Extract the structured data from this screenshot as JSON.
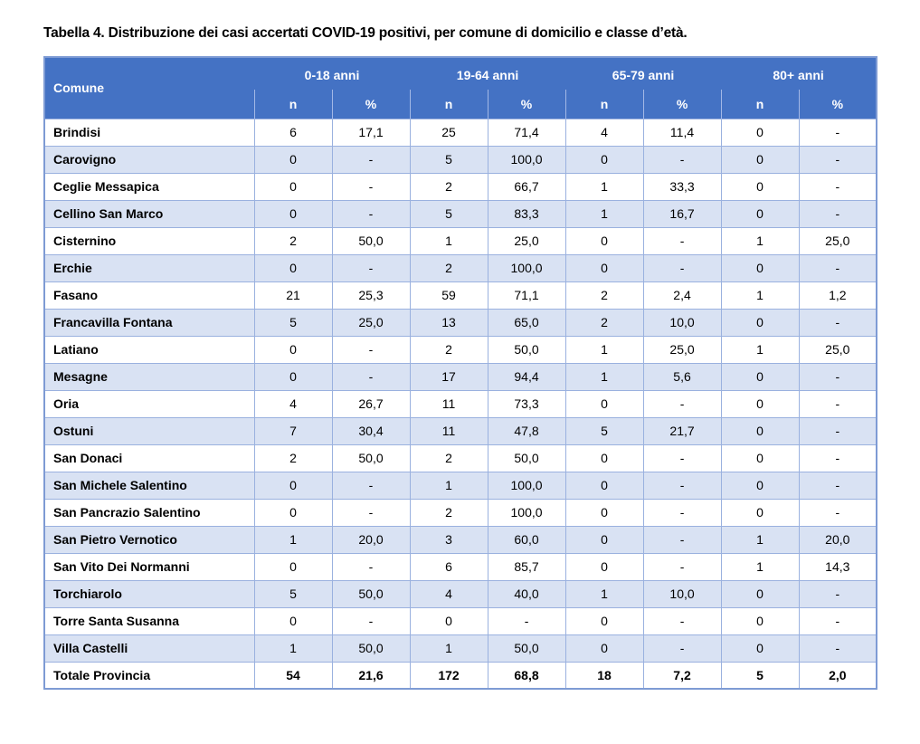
{
  "title": "Tabella 4. Distribuzione dei casi accertati COVID-19 positivi, per comune di domicilio e classe d’età.",
  "table": {
    "comune_header": "Comune",
    "group_headers": [
      "0-18 anni",
      "19-64 anni",
      "65-79 anni",
      "80+ anni"
    ],
    "sub_headers": [
      "n",
      "%"
    ],
    "rows": [
      {
        "comune": "Brindisi",
        "values": [
          "6",
          "17,1",
          "25",
          "71,4",
          "4",
          "11,4",
          "0",
          "-"
        ]
      },
      {
        "comune": "Carovigno",
        "values": [
          "0",
          "-",
          "5",
          "100,0",
          "0",
          "-",
          "0",
          "-"
        ]
      },
      {
        "comune": "Ceglie Messapica",
        "values": [
          "0",
          "-",
          "2",
          "66,7",
          "1",
          "33,3",
          "0",
          "-"
        ]
      },
      {
        "comune": "Cellino San Marco",
        "values": [
          "0",
          "-",
          "5",
          "83,3",
          "1",
          "16,7",
          "0",
          "-"
        ]
      },
      {
        "comune": "Cisternino",
        "values": [
          "2",
          "50,0",
          "1",
          "25,0",
          "0",
          "-",
          "1",
          "25,0"
        ]
      },
      {
        "comune": "Erchie",
        "values": [
          "0",
          "-",
          "2",
          "100,0",
          "0",
          "-",
          "0",
          "-"
        ]
      },
      {
        "comune": "Fasano",
        "values": [
          "21",
          "25,3",
          "59",
          "71,1",
          "2",
          "2,4",
          "1",
          "1,2"
        ]
      },
      {
        "comune": "Francavilla Fontana",
        "values": [
          "5",
          "25,0",
          "13",
          "65,0",
          "2",
          "10,0",
          "0",
          "-"
        ]
      },
      {
        "comune": "Latiano",
        "values": [
          "0",
          "-",
          "2",
          "50,0",
          "1",
          "25,0",
          "1",
          "25,0"
        ]
      },
      {
        "comune": "Mesagne",
        "values": [
          "0",
          "-",
          "17",
          "94,4",
          "1",
          "5,6",
          "0",
          "-"
        ]
      },
      {
        "comune": "Oria",
        "values": [
          "4",
          "26,7",
          "11",
          "73,3",
          "0",
          "-",
          "0",
          "-"
        ]
      },
      {
        "comune": "Ostuni",
        "values": [
          "7",
          "30,4",
          "11",
          "47,8",
          "5",
          "21,7",
          "0",
          "-"
        ]
      },
      {
        "comune": "San Donaci",
        "values": [
          "2",
          "50,0",
          "2",
          "50,0",
          "0",
          "-",
          "0",
          "-"
        ]
      },
      {
        "comune": "San Michele Salentino",
        "values": [
          "0",
          "-",
          "1",
          "100,0",
          "0",
          "-",
          "0",
          "-"
        ]
      },
      {
        "comune": "San Pancrazio Salentino",
        "values": [
          "0",
          "-",
          "2",
          "100,0",
          "0",
          "-",
          "0",
          "-"
        ]
      },
      {
        "comune": "San Pietro Vernotico",
        "values": [
          "1",
          "20,0",
          "3",
          "60,0",
          "0",
          "-",
          "1",
          "20,0"
        ]
      },
      {
        "comune": "San Vito Dei Normanni",
        "values": [
          "0",
          "-",
          "6",
          "85,7",
          "0",
          "-",
          "1",
          "14,3"
        ]
      },
      {
        "comune": "Torchiarolo",
        "values": [
          "5",
          "50,0",
          "4",
          "40,0",
          "1",
          "10,0",
          "0",
          "-"
        ]
      },
      {
        "comune": "Torre Santa Susanna",
        "values": [
          "0",
          "-",
          "0",
          "-",
          "0",
          "-",
          "0",
          "-"
        ]
      },
      {
        "comune": "Villa Castelli",
        "values": [
          "1",
          "50,0",
          "1",
          "50,0",
          "0",
          "-",
          "0",
          "-"
        ]
      }
    ],
    "total_row": {
      "comune": "Totale Provincia",
      "values": [
        "54",
        "21,6",
        "172",
        "68,8",
        "18",
        "7,2",
        "5",
        "2,0"
      ]
    }
  },
  "colors": {
    "header_bg": "#4472C4",
    "header_text": "#FFFFFF",
    "band_bg": "#D9E2F3",
    "cell_border": "#9AB1DF",
    "outer_border": "#7E9BD4",
    "header_divider": "#A3B8E6",
    "text": "#000000"
  }
}
